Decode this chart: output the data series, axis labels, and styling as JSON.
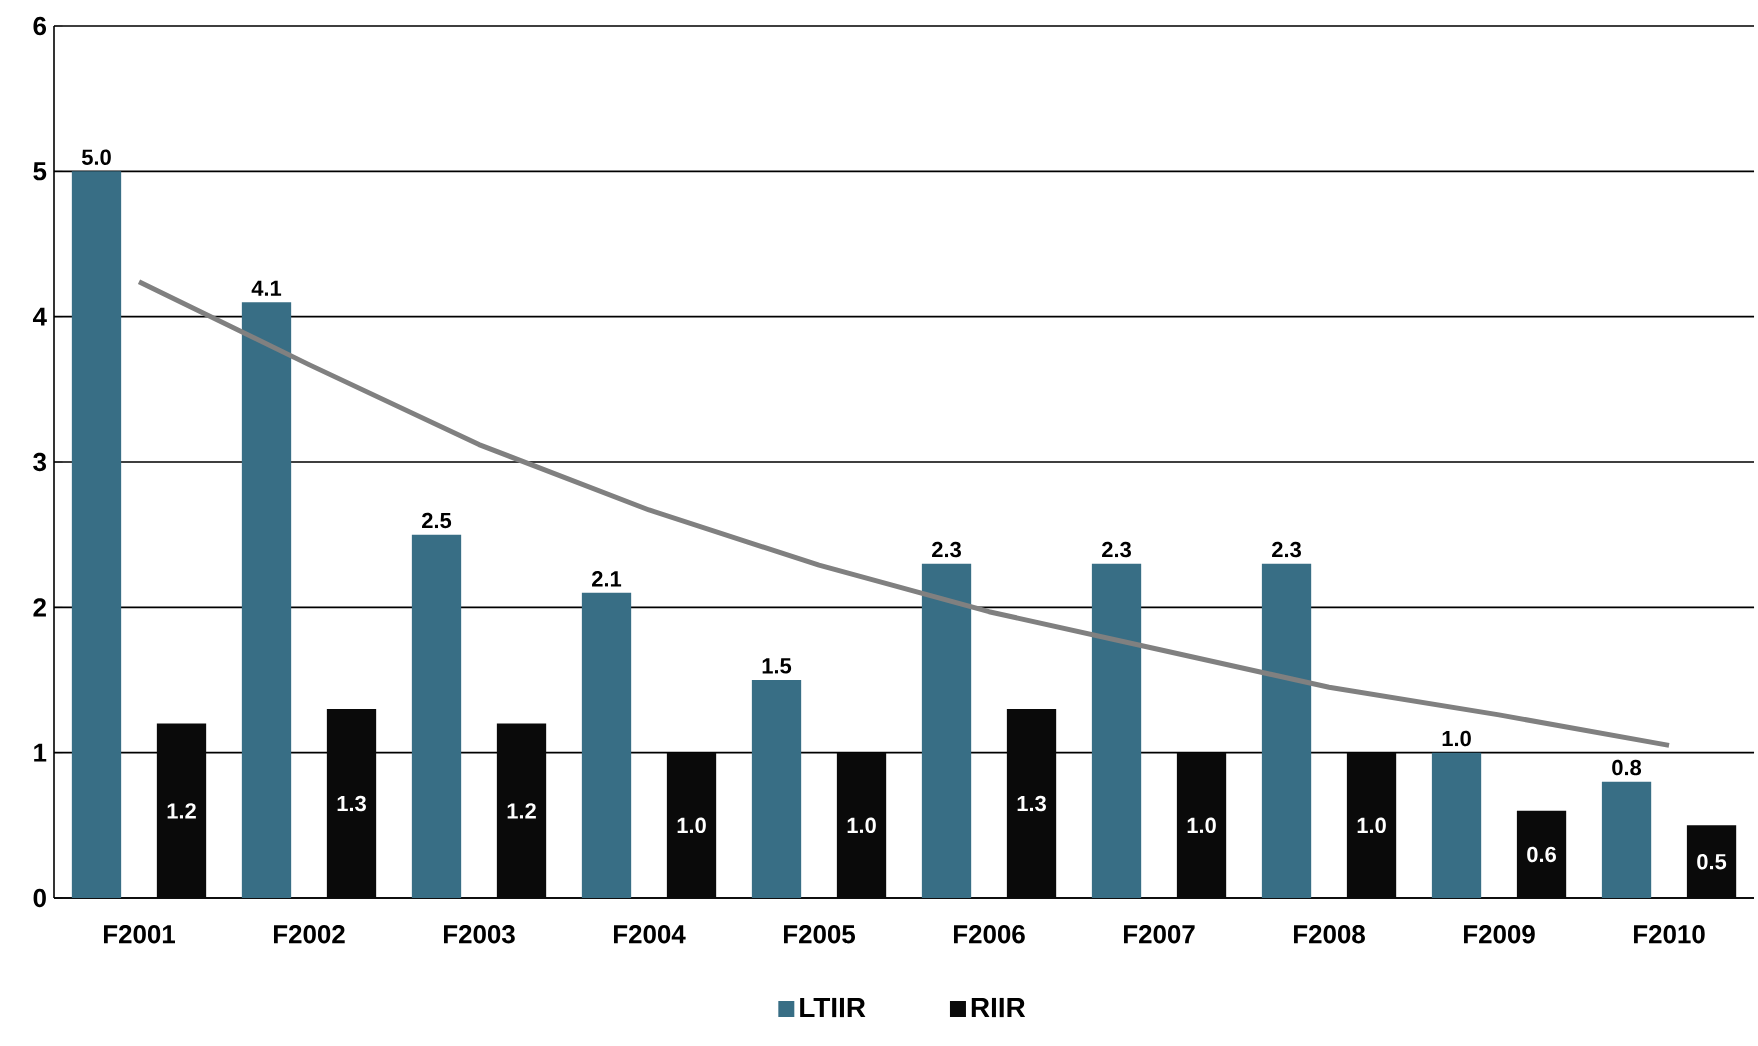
{
  "chart_data": {
    "type": "bar",
    "categories": [
      "F2001",
      "F2002",
      "F2003",
      "F2004",
      "F2005",
      "F2006",
      "F2007",
      "F2008",
      "F2009",
      "F2010"
    ],
    "series": [
      {
        "name": "LTIIR",
        "color": "#386e85",
        "values": [
          5.0,
          4.1,
          2.5,
          2.1,
          1.5,
          2.3,
          2.3,
          2.3,
          1.0,
          0.8
        ],
        "value_labels": [
          "5.0",
          "4.1",
          "2.5",
          "2.1",
          "1.5",
          "2.3",
          "2.3",
          "2.3",
          "1.0",
          "0.8"
        ]
      },
      {
        "name": "RIIR",
        "color": "#0a0a0a",
        "values": [
          1.2,
          1.3,
          1.2,
          1.0,
          1.0,
          1.3,
          1.0,
          1.0,
          0.6,
          0.5
        ],
        "value_labels": [
          "1.2",
          "1.3",
          "1.2",
          "1.0",
          "1.0",
          "1.3",
          "1.0",
          "1.0",
          "0.6",
          "0.5"
        ]
      },
      {
        "type": "line",
        "color": "#808080",
        "values": [
          4.24,
          3.67,
          3.12,
          2.67,
          2.29,
          1.97,
          1.71,
          1.45,
          1.26,
          1.05
        ]
      }
    ],
    "ylim": [
      0,
      6
    ],
    "yticks": [
      0,
      1,
      2,
      3,
      4,
      5,
      6
    ],
    "grid": "y",
    "legend": "bottom"
  }
}
